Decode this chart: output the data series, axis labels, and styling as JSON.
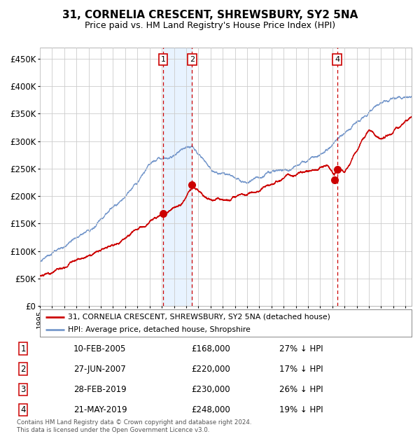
{
  "title": "31, CORNELIA CRESCENT, SHREWSBURY, SY2 5NA",
  "subtitle": "Price paid vs. HM Land Registry's House Price Index (HPI)",
  "title_fontsize": 11,
  "subtitle_fontsize": 9,
  "ylim": [
    0,
    470000
  ],
  "yticks": [
    0,
    50000,
    100000,
    150000,
    200000,
    250000,
    300000,
    350000,
    400000,
    450000
  ],
  "ytick_labels": [
    "£0",
    "£50K",
    "£100K",
    "£150K",
    "£200K",
    "£250K",
    "£300K",
    "£350K",
    "£400K",
    "£450K"
  ],
  "background_color": "#ffffff",
  "grid_color": "#cccccc",
  "hpi_color": "#7799cc",
  "price_color": "#cc0000",
  "dashed_line_color": "#cc0000",
  "shade_color": "#ddeeff",
  "legend_label_price": "31, CORNELIA CRESCENT, SHREWSBURY, SY2 5NA (detached house)",
  "legend_label_hpi": "HPI: Average price, detached house, Shropshire",
  "sales": [
    {
      "num": 1,
      "date_num": 2005.11,
      "price": 168000,
      "label": "10-FEB-2005",
      "pct": "27% ↓ HPI"
    },
    {
      "num": 2,
      "date_num": 2007.49,
      "price": 220000,
      "label": "27-JUN-2007",
      "pct": "17% ↓ HPI"
    },
    {
      "num": 3,
      "date_num": 2019.16,
      "price": 230000,
      "label": "28-FEB-2019",
      "pct": "26% ↓ HPI"
    },
    {
      "num": 4,
      "date_num": 2019.39,
      "price": 248000,
      "label": "21-MAY-2019",
      "pct": "19% ↓ HPI"
    }
  ],
  "footnote": "Contains HM Land Registry data © Crown copyright and database right 2024.\nThis data is licensed under the Open Government Licence v3.0.",
  "xstart": 1995.0,
  "xend": 2025.5
}
